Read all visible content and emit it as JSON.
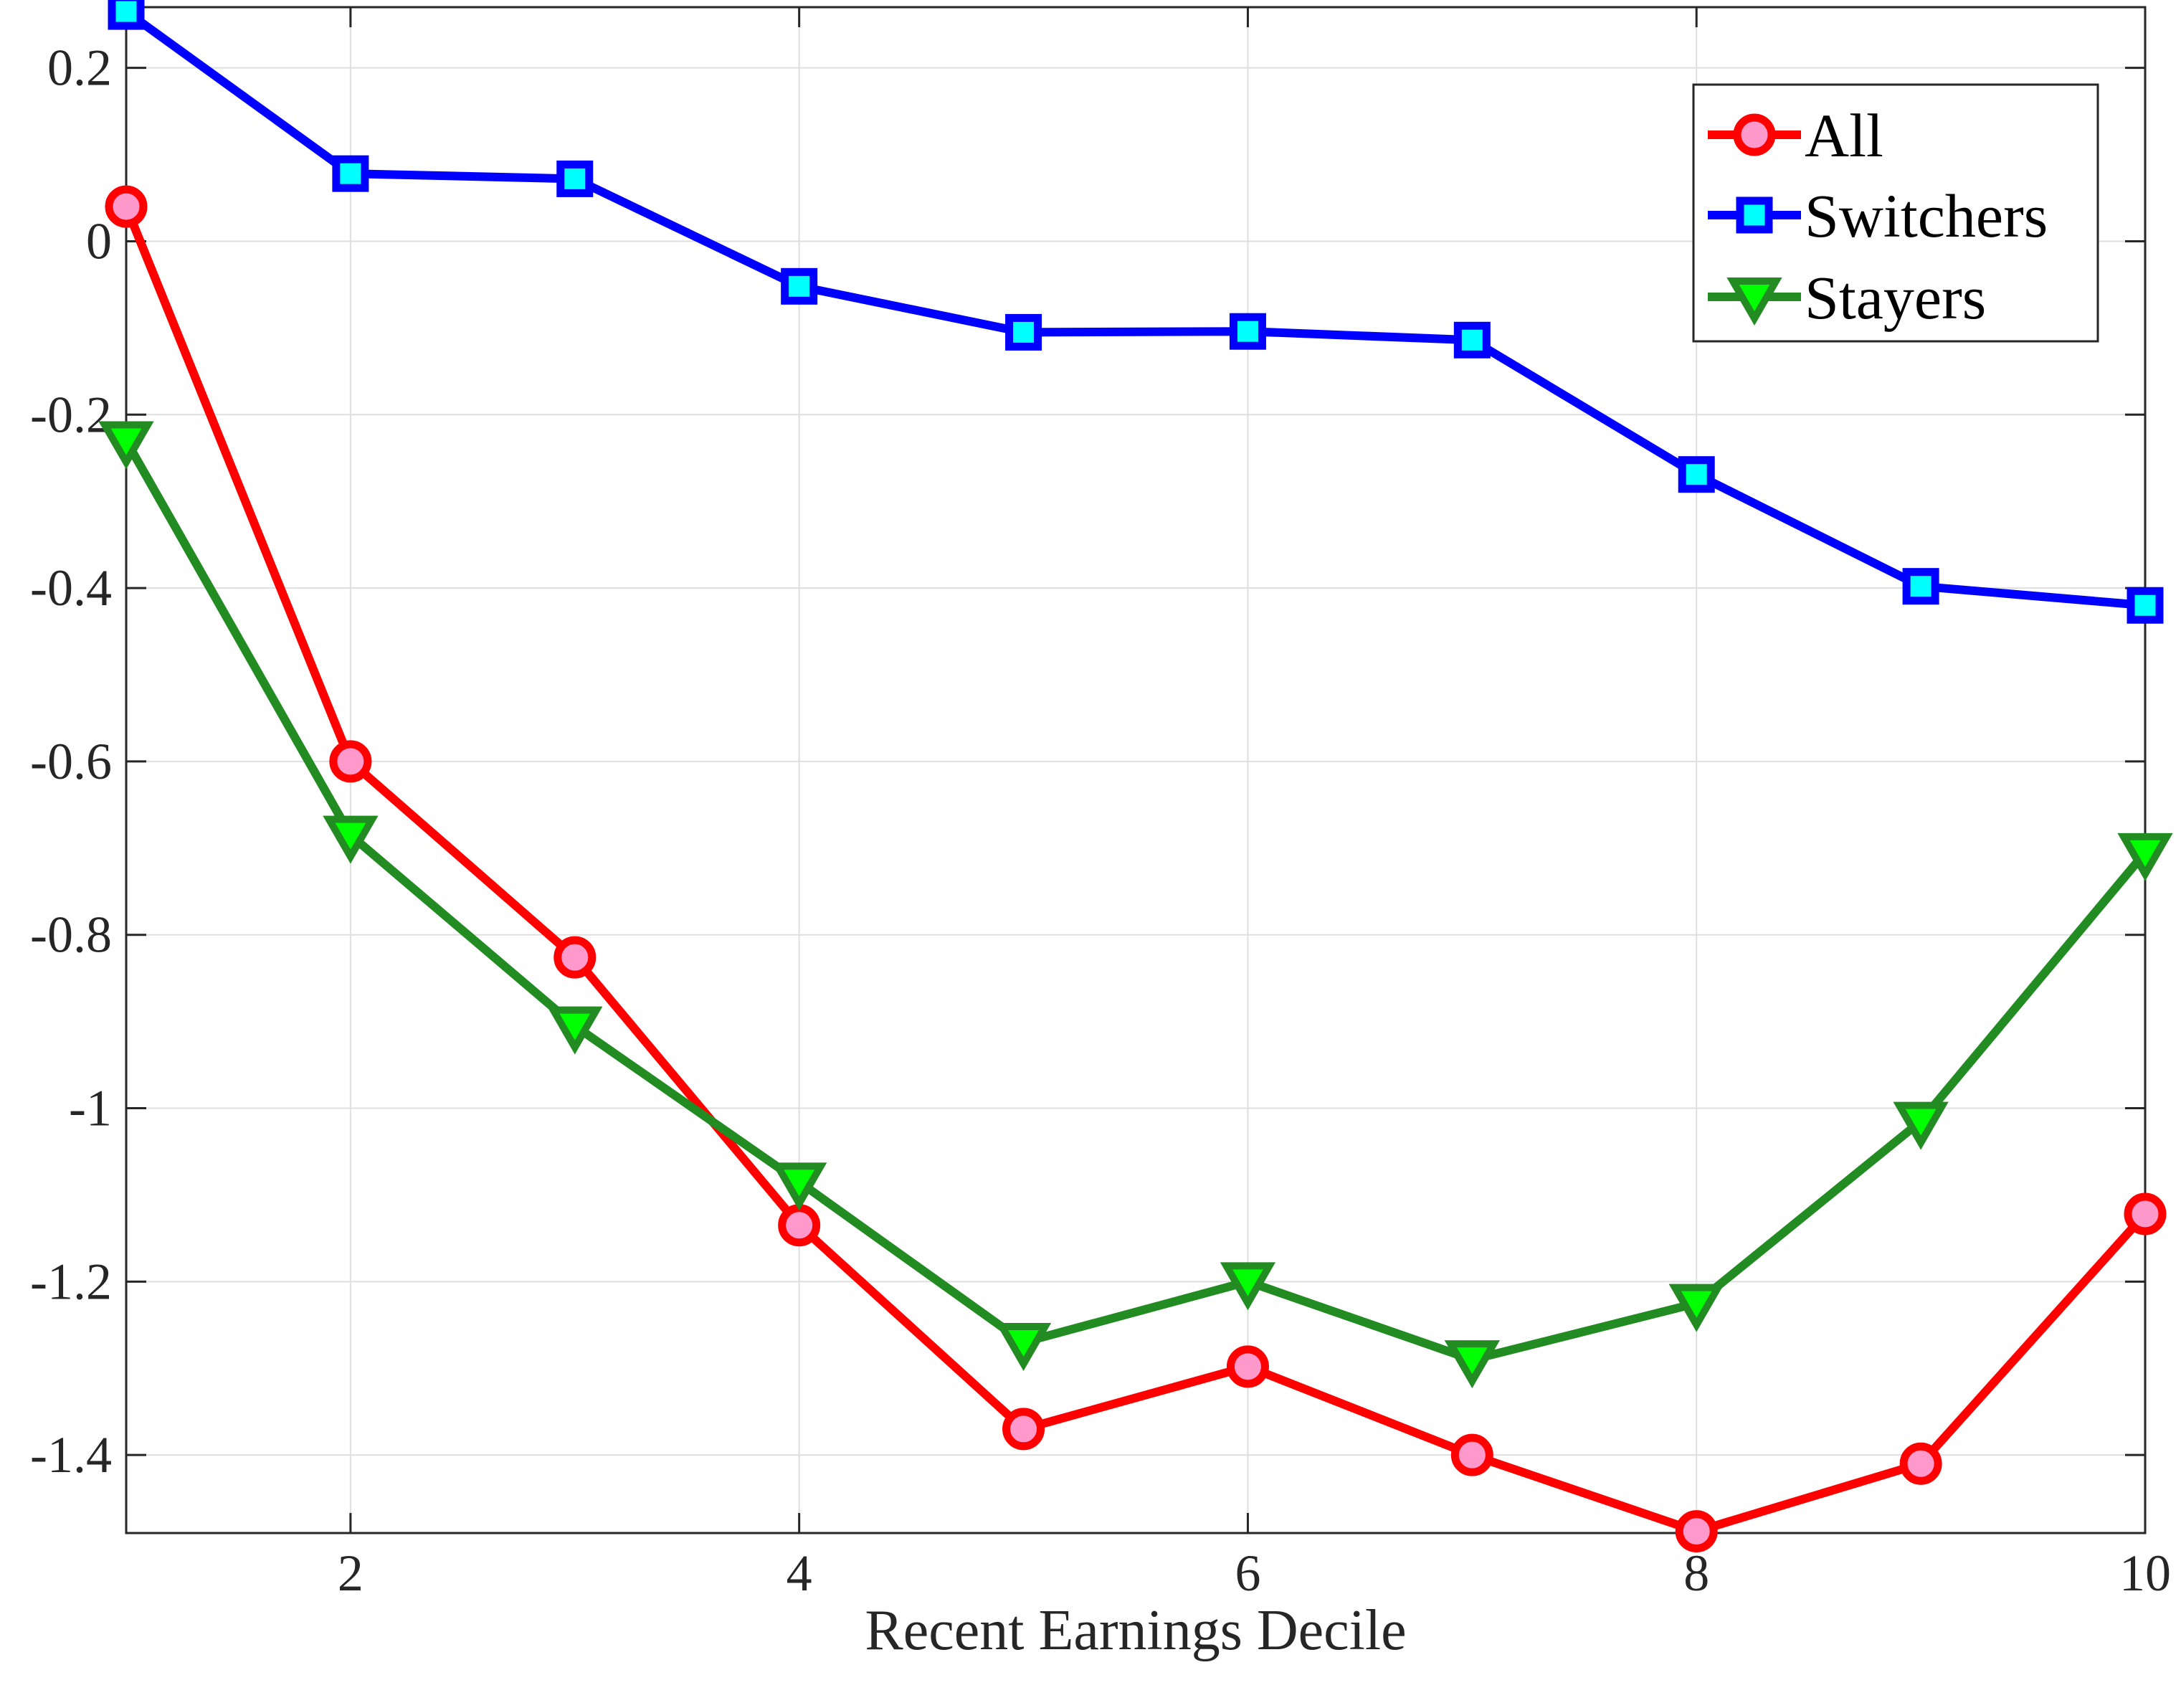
{
  "chart_data": {
    "type": "line",
    "title": "",
    "xlabel": "Recent Earnings Decile",
    "ylabel": "",
    "x": [
      1,
      2,
      3,
      4,
      5,
      6,
      7,
      8,
      9,
      10
    ],
    "xlim": [
      1,
      10
    ],
    "ylim": [
      -1.49,
      0.27
    ],
    "xticks": [
      2,
      4,
      6,
      8,
      10
    ],
    "yticks": [
      0.2,
      0,
      -0.2,
      -0.4,
      -0.6,
      -0.8,
      -1,
      -1.2,
      -1.4
    ],
    "xtick_labels": [
      "2",
      "4",
      "6",
      "8",
      "10"
    ],
    "ytick_labels": [
      "0.2",
      "0",
      "-0.2",
      "-0.4",
      "-0.6",
      "-0.8",
      "-1",
      "-1.2",
      "-1.4"
    ],
    "grid": true,
    "legend_position": "top-right",
    "series": [
      {
        "name": "All",
        "marker": "circle",
        "color": "#ff0000",
        "marker_fill": "#ff99cc",
        "values": [
          0.04,
          -0.6,
          -0.826,
          -1.135,
          -1.37,
          -1.298,
          -1.4,
          -1.488,
          -1.41,
          -1.122
        ]
      },
      {
        "name": "Switchers",
        "marker": "square",
        "color": "#0000ff",
        "marker_fill": "#00ffff",
        "values": [
          0.265,
          0.078,
          0.072,
          -0.052,
          -0.105,
          -0.104,
          -0.114,
          -0.269,
          -0.398,
          -0.42
        ]
      },
      {
        "name": "Stayers",
        "marker": "triangle-down",
        "color": "#228b22",
        "marker_fill": "#00ff00",
        "values": [
          -0.23,
          -0.685,
          -0.905,
          -1.085,
          -1.27,
          -1.2,
          -1.29,
          -1.225,
          -1.015,
          -0.705
        ]
      }
    ]
  }
}
